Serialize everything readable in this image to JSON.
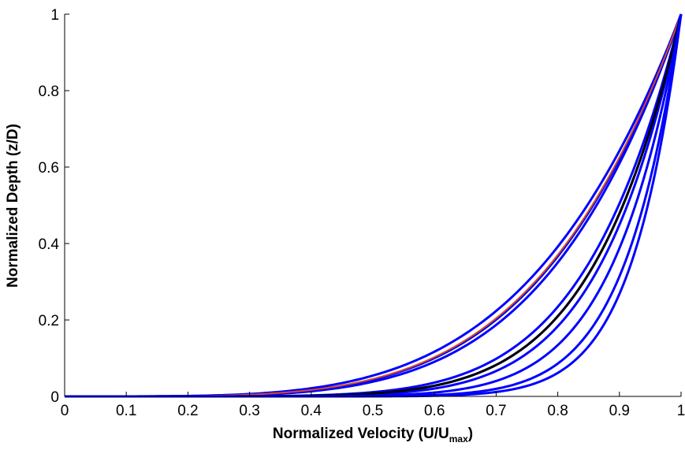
{
  "chart_data": {
    "type": "line",
    "xlabel": {
      "main": "Normalized Velocity (U/U",
      "sub": "max",
      "close": ")"
    },
    "ylabel": "Normalized Depth (z/D)",
    "xlim": [
      0,
      1
    ],
    "ylim": [
      0,
      1
    ],
    "x_ticks": [
      "0",
      "0.1",
      "0.2",
      "0.3",
      "0.4",
      "0.5",
      "0.6",
      "0.7",
      "0.8",
      "0.9",
      "1"
    ],
    "y_ticks": [
      "0",
      "0.2",
      "0.4",
      "0.6",
      "0.8",
      "1"
    ],
    "grid": false,
    "legend": "none",
    "series": [
      {
        "color": "#0000ff",
        "exponent": 4.2,
        "width": 3
      },
      {
        "color": "#0000ff",
        "exponent": 4.5,
        "width": 3
      },
      {
        "color": "#0000ff",
        "exponent": 4.7,
        "width": 3
      },
      {
        "color": "#d94a1a",
        "exponent": 4.45,
        "width": 2
      },
      {
        "color": "#0000ff",
        "exponent": 6.5,
        "width": 3
      },
      {
        "color": "#0000ff",
        "exponent": 7.0,
        "width": 3
      },
      {
        "color": "#0000ff",
        "exponent": 7.6,
        "width": 3
      },
      {
        "color": "#000000",
        "exponent": 7.0,
        "width": 3
      },
      {
        "color": "#0000ff",
        "exponent": 9.0,
        "width": 3
      },
      {
        "color": "#0000ff",
        "exponent": 11.0,
        "width": 3
      },
      {
        "color": "#0000ff",
        "exponent": 12.5,
        "width": 3
      }
    ]
  }
}
